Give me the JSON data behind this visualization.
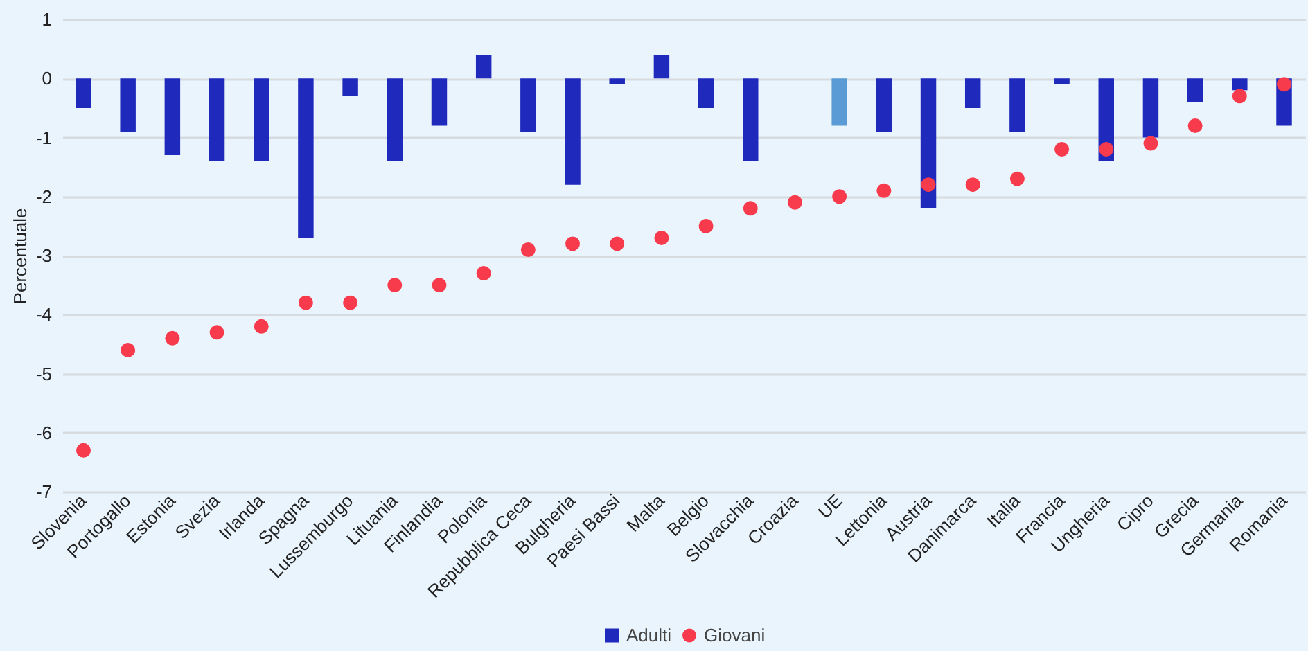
{
  "chart_data": {
    "type": "bar",
    "ylabel": "Percentuale",
    "categories": [
      "Slovenia",
      "Portogallo",
      "Estonia",
      "Svezia",
      "Irlanda",
      "Spagna",
      "Lussemburgo",
      "Lituania",
      "Finlandia",
      "Polonia",
      "Repubblica Ceca",
      "Bulgheria",
      "Paesi Bassi",
      "Malta",
      "Belgio",
      "Slovacchia",
      "Croazia",
      "UE",
      "Lettonia",
      "Austria",
      "Danimarca",
      "Italia",
      "Francia",
      "Ungheria",
      "Cipro",
      "Grecia",
      "Germania",
      "Romania"
    ],
    "series": [
      {
        "name": "Adulti",
        "color": "#1f29bb",
        "colors": [
          "#1f29bb",
          "#1f29bb",
          "#1f29bb",
          "#1f29bb",
          "#1f29bb",
          "#1f29bb",
          "#1f29bb",
          "#1f29bb",
          "#1f29bb",
          "#1f29bb",
          "#1f29bb",
          "#1f29bb",
          "#1f29bb",
          "#1f29bb",
          "#1f29bb",
          "#1f29bb",
          "#1f29bb",
          "#5b9bd5",
          "#1f29bb",
          "#1f29bb",
          "#1f29bb",
          "#1f29bb",
          "#1f29bb",
          "#1f29bb",
          "#1f29bb",
          "#1f29bb",
          "#1f29bb",
          "#1f29bb"
        ],
        "values": [
          -0.5,
          -0.9,
          -1.3,
          -1.4,
          -1.4,
          -2.7,
          -0.3,
          -1.4,
          -0.8,
          0.4,
          -0.9,
          -1.8,
          -0.1,
          0.4,
          -0.5,
          -1.4,
          null,
          -0.8,
          -0.9,
          -2.2,
          -0.5,
          -0.9,
          -0.1,
          -1.4,
          -1.0,
          -0.4,
          -0.2,
          -0.8
        ]
      },
      {
        "name": "Giovani",
        "type": "scatter",
        "color": "#f73b4c",
        "values": [
          -6.3,
          -4.6,
          -4.4,
          -4.3,
          -4.2,
          -3.8,
          -3.8,
          -3.5,
          -3.5,
          -3.3,
          -2.9,
          -2.8,
          -2.8,
          -2.7,
          -2.5,
          -2.2,
          -2.1,
          -2.0,
          -1.9,
          -1.8,
          -1.8,
          -1.7,
          -1.2,
          -1.2,
          -1.1,
          -0.8,
          -0.3,
          -0.1
        ]
      }
    ],
    "ylim": [
      -7,
      1
    ],
    "yticks": [
      -7,
      -6,
      -5,
      -4,
      -3,
      -2,
      -1,
      0,
      1
    ],
    "grid": "y",
    "legend": "bottom",
    "marker": "circle"
  }
}
